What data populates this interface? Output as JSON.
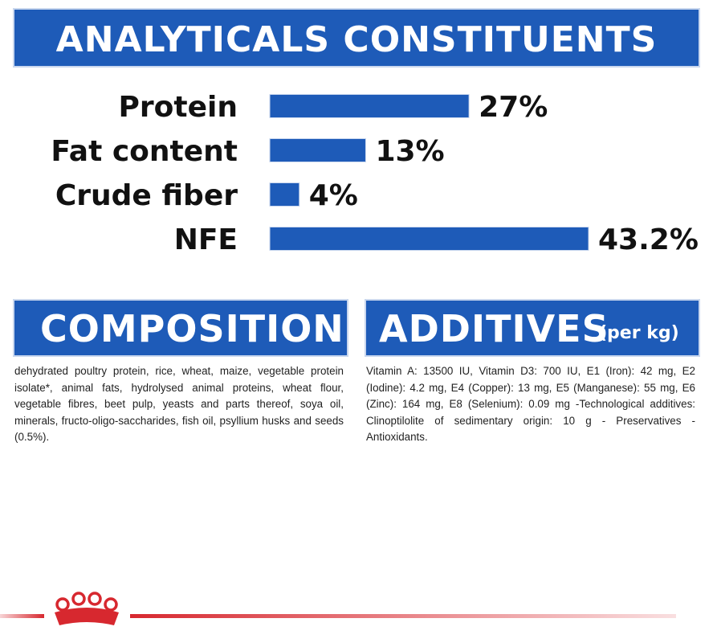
{
  "header": {
    "title": "ANALYTICALS CONSTITUENTS"
  },
  "chart_data": {
    "type": "bar",
    "orientation": "horizontal",
    "categories": [
      "Protein",
      "Fat content",
      "Crude fiber",
      "NFE"
    ],
    "values": [
      27,
      13,
      4,
      43.2
    ],
    "value_labels": [
      "27%",
      "13%",
      "4%",
      "43.2%"
    ],
    "unit": "%",
    "xlim": [
      0,
      43.2
    ],
    "grid": false,
    "bar_color": "#1e5bb8"
  },
  "composition": {
    "title": "COMPOSITION",
    "text": "dehydrated poultry protein, rice, wheat, maize, vegetable protein isolate*, animal fats, hydrolysed animal proteins, wheat flour, vegetable fibres, beet pulp, yeasts and parts thereof, soya oil, minerals, fructo-oligo-saccharides, fish oil, psyllium husks and seeds (0.5%)."
  },
  "additives": {
    "title": "ADDITIVES",
    "subtitle": "(per kg)",
    "text": "Vitamin A: 13500 IU, Vitamin D3: 700 IU, E1 (Iron): 42 mg, E2 (Iodine): 4.2 mg, E4 (Copper): 13 mg, E5 (Manganese): 55 mg, E6 (Zinc): 164 mg, E8 (Selenium): 0.09 mg -Technological additives: Clinoptilolite of sedimentary origin: 10 g - Preservatives - Antioxidants."
  },
  "footer": {
    "logo_icon": "royal-crown-icon",
    "accent": "#d7282f"
  }
}
